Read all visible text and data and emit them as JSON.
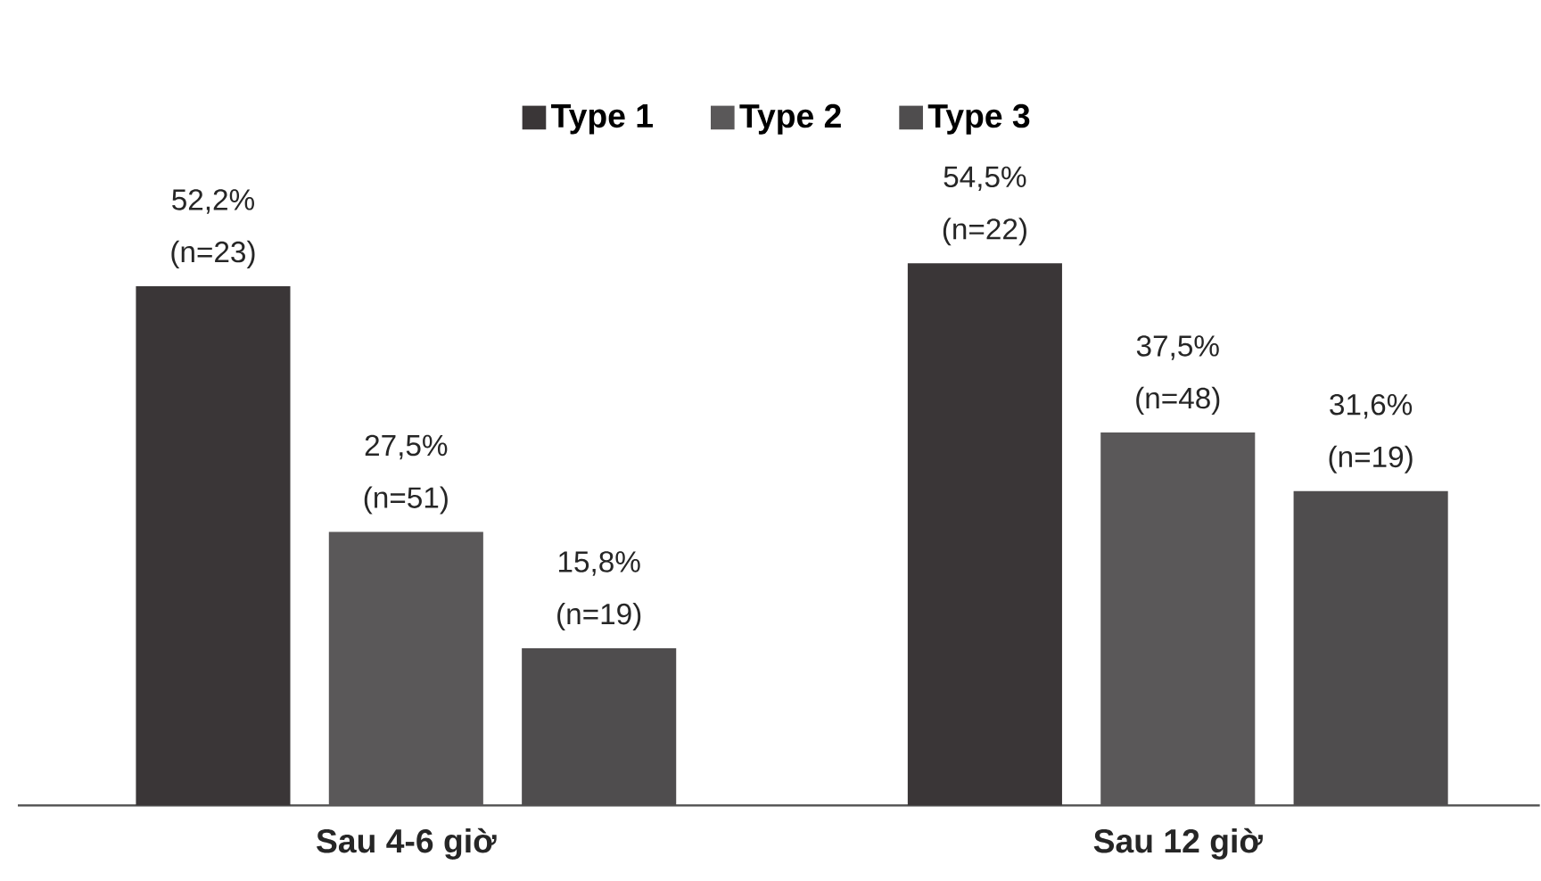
{
  "chart_data": {
    "type": "bar",
    "categories": [
      "Sau 4-6 giờ",
      "Sau 12 giờ"
    ],
    "series": [
      {
        "name": "Type 1",
        "color": "#3a3637",
        "values": [
          52.2,
          54.5
        ],
        "value_labels": [
          "52,2% (n=23)",
          "54,5% (n=22)"
        ]
      },
      {
        "name": "Type 2",
        "color": "#5a5859",
        "values": [
          27.5,
          37.5
        ],
        "value_labels": [
          "27,5% (n=51)",
          "37,5% (n=48)"
        ]
      },
      {
        "name": "Type 3",
        "color": "#4f4d4e",
        "values": [
          15.8,
          31.6
        ],
        "value_labels": [
          "15,8% (n=19)",
          "31,6% (n=19)"
        ]
      }
    ],
    "legend": "top",
    "grid": false
  }
}
